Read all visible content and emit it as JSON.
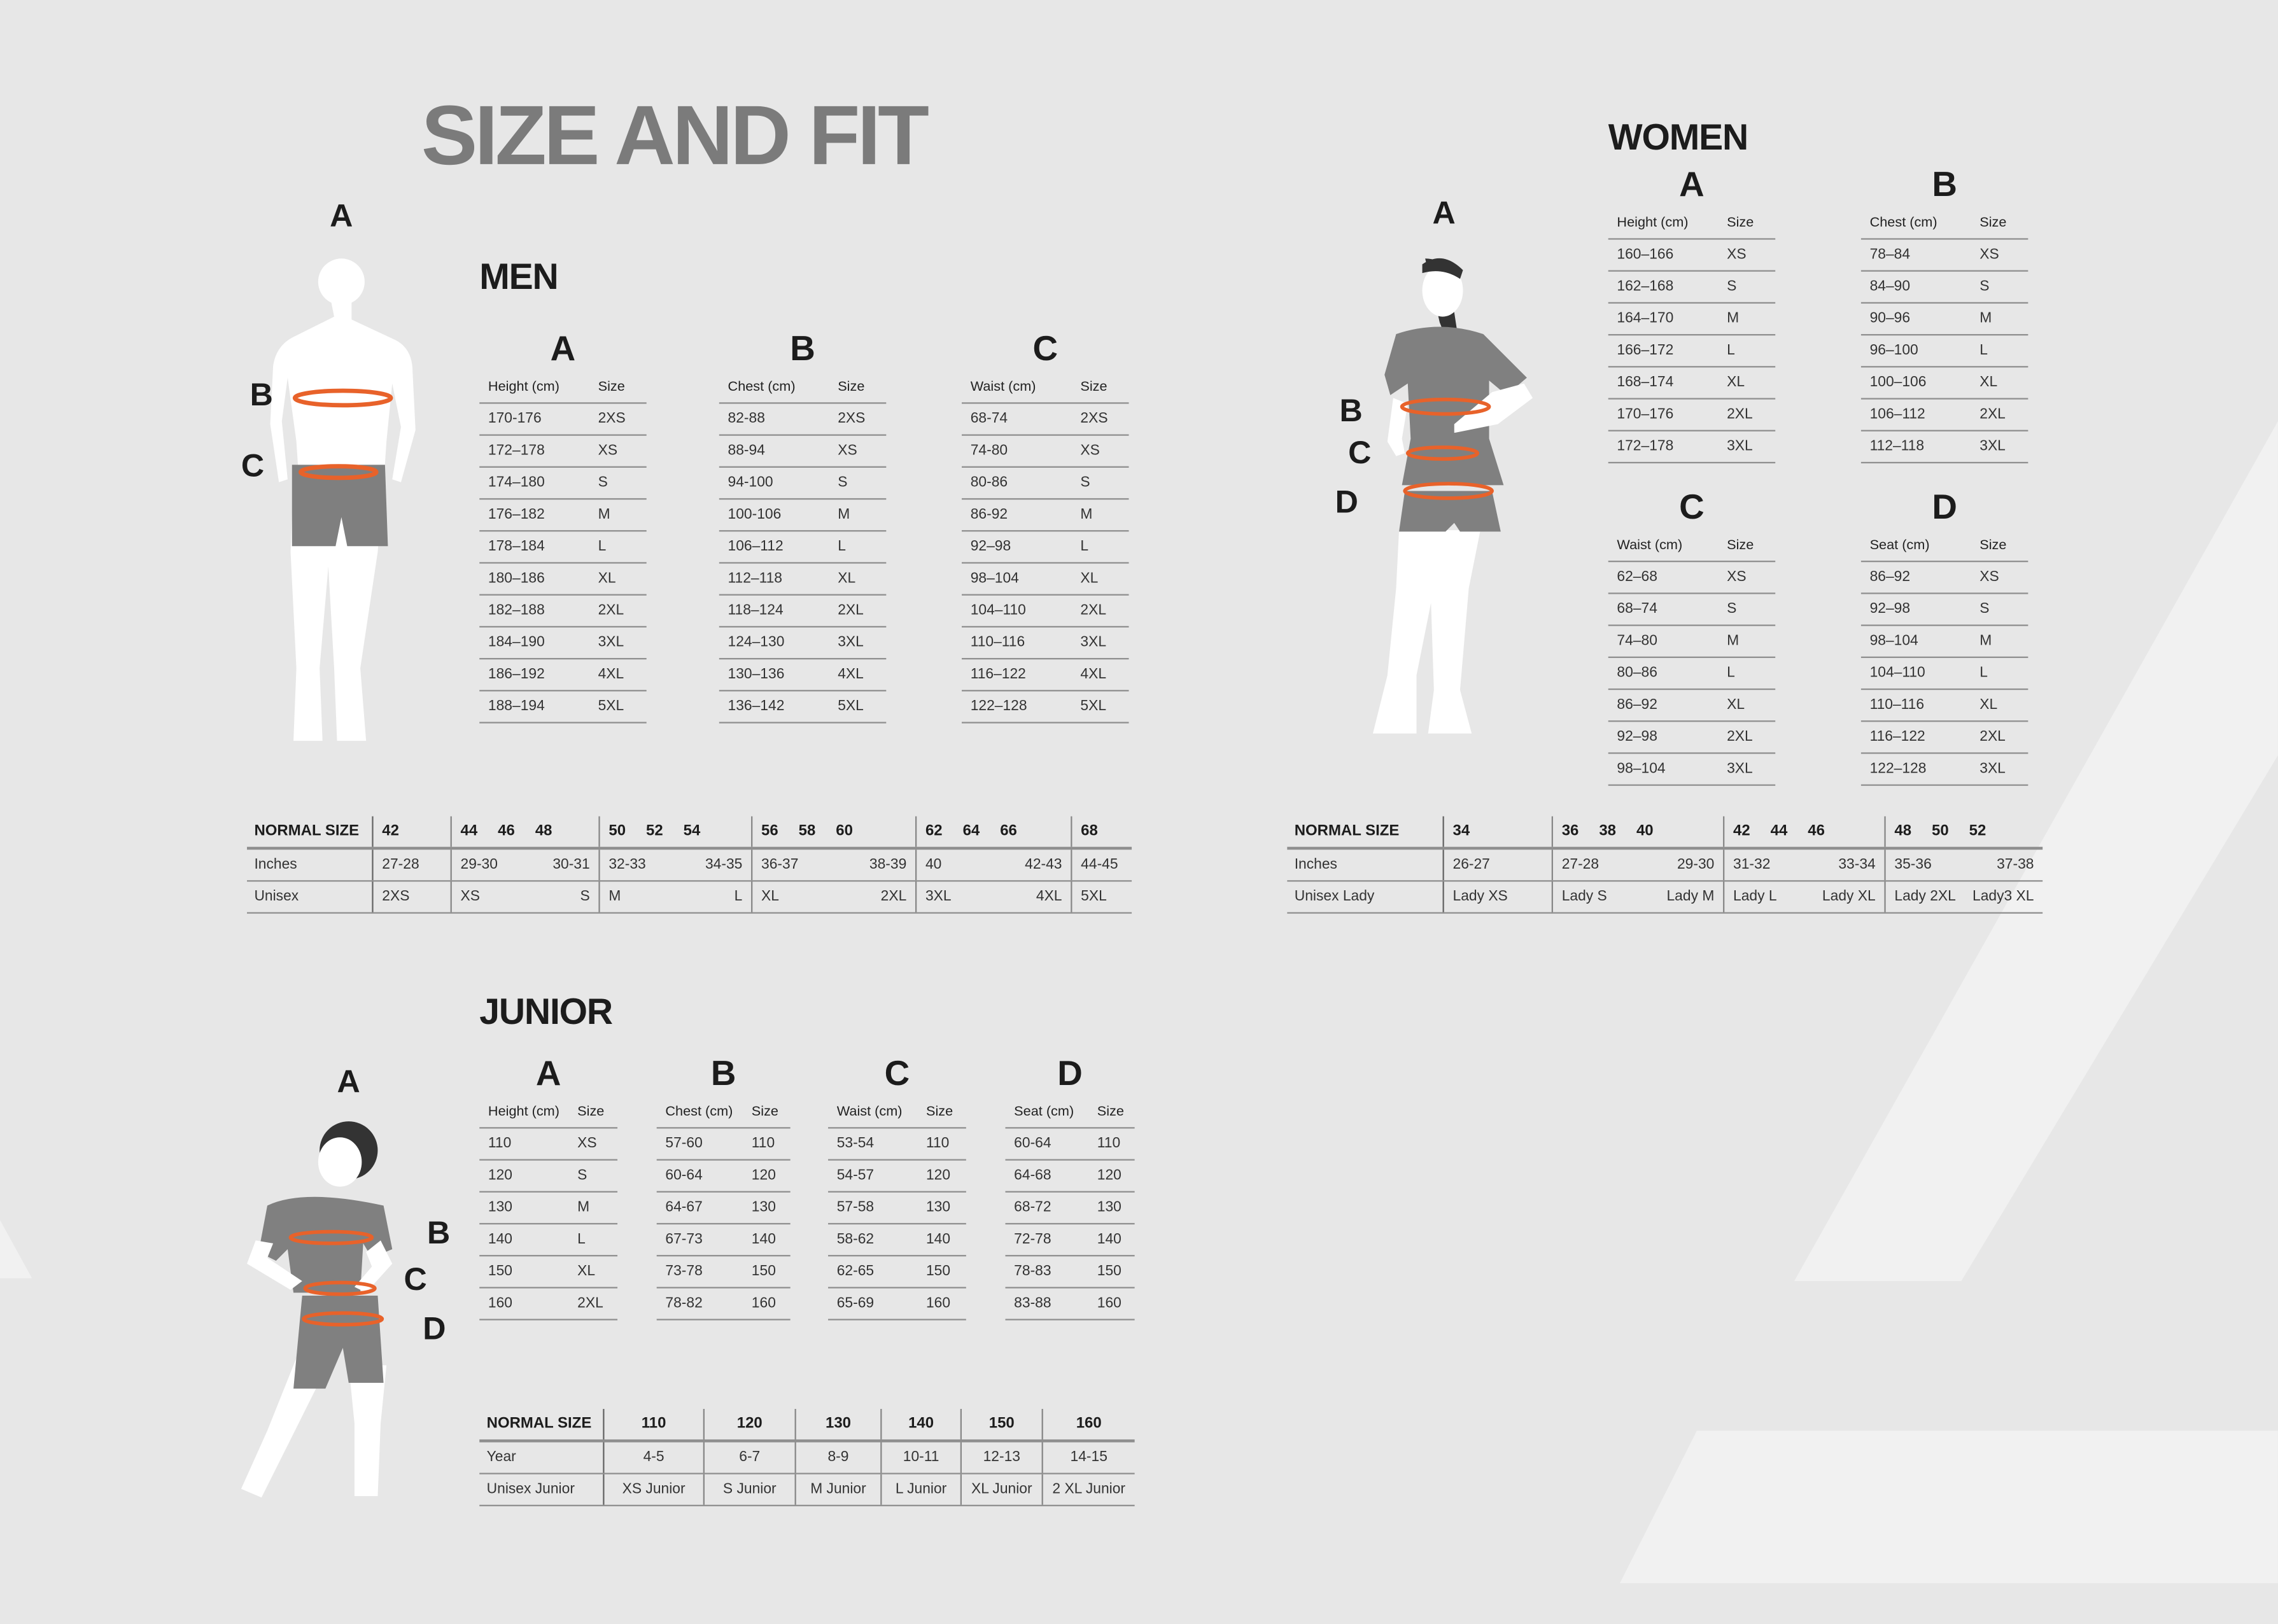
{
  "title": "SIZE AND FIT",
  "colors": {
    "background": "#e7e7e7",
    "accent_ring": "#e8622a",
    "title": "#7b7b7b",
    "garment": "#808080"
  },
  "men": {
    "label": "MEN",
    "figure_letters": [
      "A",
      "B",
      "C"
    ],
    "tables": [
      {
        "letter": "A",
        "headers": [
          "Height (cm)",
          "Size"
        ],
        "rows": [
          [
            "170-176",
            "2XS"
          ],
          [
            "172–178",
            "XS"
          ],
          [
            "174–180",
            "S"
          ],
          [
            "176–182",
            "M"
          ],
          [
            "178–184",
            "L"
          ],
          [
            "180–186",
            "XL"
          ],
          [
            "182–188",
            "2XL"
          ],
          [
            "184–190",
            "3XL"
          ],
          [
            "186–192",
            "4XL"
          ],
          [
            "188–194",
            "5XL"
          ]
        ]
      },
      {
        "letter": "B",
        "headers": [
          "Chest (cm)",
          "Size"
        ],
        "rows": [
          [
            "82-88",
            "2XS"
          ],
          [
            "88-94",
            "XS"
          ],
          [
            "94-100",
            "S"
          ],
          [
            "100-106",
            "M"
          ],
          [
            "106–112",
            "L"
          ],
          [
            "112–118",
            "XL"
          ],
          [
            "118–124",
            "2XL"
          ],
          [
            "124–130",
            "3XL"
          ],
          [
            "130–136",
            "4XL"
          ],
          [
            "136–142",
            "5XL"
          ]
        ]
      },
      {
        "letter": "C",
        "headers": [
          "Waist (cm)",
          "Size"
        ],
        "rows": [
          [
            "68-74",
            "2XS"
          ],
          [
            "74-80",
            "XS"
          ],
          [
            "80-86",
            "S"
          ],
          [
            "86-92",
            "M"
          ],
          [
            "92–98",
            "L"
          ],
          [
            "98–104",
            "XL"
          ],
          [
            "104–110",
            "2XL"
          ],
          [
            "110–116",
            "3XL"
          ],
          [
            "116–122",
            "4XL"
          ],
          [
            "122–128",
            "5XL"
          ]
        ]
      }
    ],
    "normal": {
      "row_labels": [
        "NORMAL SIZE",
        "Inches",
        "Unisex"
      ],
      "groups": [
        {
          "sizes": [
            "42"
          ],
          "inches": [
            "27-28"
          ],
          "unisex": [
            "2XS"
          ]
        },
        {
          "sizes": [
            "44",
            "46",
            "48"
          ],
          "inches": [
            "29-30",
            "30-31"
          ],
          "unisex": [
            "XS",
            "S"
          ]
        },
        {
          "sizes": [
            "50",
            "52",
            "54"
          ],
          "inches": [
            "32-33",
            "34-35"
          ],
          "unisex": [
            "M",
            "L"
          ]
        },
        {
          "sizes": [
            "56",
            "58",
            "60"
          ],
          "inches": [
            "36-37",
            "38-39"
          ],
          "unisex": [
            "XL",
            "2XL"
          ]
        },
        {
          "sizes": [
            "62",
            "64",
            "66"
          ],
          "inches": [
            "40",
            "42-43"
          ],
          "unisex": [
            "3XL",
            "4XL"
          ]
        },
        {
          "sizes": [
            "68"
          ],
          "inches": [
            "44-45"
          ],
          "unisex": [
            "5XL"
          ]
        }
      ]
    }
  },
  "women": {
    "label": "WOMEN",
    "figure_letters": [
      "A",
      "B",
      "C",
      "D"
    ],
    "tables": [
      {
        "letter": "A",
        "headers": [
          "Height (cm)",
          "Size"
        ],
        "rows": [
          [
            "160–166",
            "XS"
          ],
          [
            "162–168",
            "S"
          ],
          [
            "164–170",
            "M"
          ],
          [
            "166–172",
            "L"
          ],
          [
            "168–174",
            "XL"
          ],
          [
            "170–176",
            "2XL"
          ],
          [
            "172–178",
            "3XL"
          ]
        ]
      },
      {
        "letter": "B",
        "headers": [
          "Chest (cm)",
          "Size"
        ],
        "rows": [
          [
            "78–84",
            "XS"
          ],
          [
            "84–90",
            "S"
          ],
          [
            "90–96",
            "M"
          ],
          [
            "96–100",
            "L"
          ],
          [
            "100–106",
            "XL"
          ],
          [
            "106–112",
            "2XL"
          ],
          [
            "112–118",
            "3XL"
          ]
        ]
      },
      {
        "letter": "C",
        "headers": [
          "Waist (cm)",
          "Size"
        ],
        "rows": [
          [
            "62–68",
            "XS"
          ],
          [
            "68–74",
            "S"
          ],
          [
            "74–80",
            "M"
          ],
          [
            "80–86",
            "L"
          ],
          [
            "86–92",
            "XL"
          ],
          [
            "92–98",
            "2XL"
          ],
          [
            "98–104",
            "3XL"
          ]
        ]
      },
      {
        "letter": "D",
        "headers": [
          "Seat (cm)",
          "Size"
        ],
        "rows": [
          [
            "86–92",
            "XS"
          ],
          [
            "92–98",
            "S"
          ],
          [
            "98–104",
            "M"
          ],
          [
            "104–110",
            "L"
          ],
          [
            "110–116",
            "XL"
          ],
          [
            "116–122",
            "2XL"
          ],
          [
            "122–128",
            "3XL"
          ]
        ]
      }
    ],
    "normal": {
      "row_labels": [
        "NORMAL SIZE",
        "Inches",
        "Unisex Lady"
      ],
      "groups": [
        {
          "sizes": [
            "34"
          ],
          "inches": [
            "26-27"
          ],
          "unisex": [
            "Lady XS"
          ]
        },
        {
          "sizes": [
            "36",
            "38",
            "40"
          ],
          "inches": [
            "27-28",
            "29-30"
          ],
          "unisex": [
            "Lady S",
            "Lady M"
          ]
        },
        {
          "sizes": [
            "42",
            "44",
            "46"
          ],
          "inches": [
            "31-32",
            "33-34"
          ],
          "unisex": [
            "Lady L",
            "Lady XL"
          ]
        },
        {
          "sizes": [
            "48",
            "50",
            "52"
          ],
          "inches": [
            "35-36",
            "37-38"
          ],
          "unisex": [
            "Lady 2XL",
            "Lady3 XL"
          ]
        }
      ]
    }
  },
  "junior": {
    "label": "JUNIOR",
    "figure_letters": [
      "A",
      "B",
      "C",
      "D"
    ],
    "tables": [
      {
        "letter": "A",
        "headers": [
          "Height (cm)",
          "Size"
        ],
        "rows": [
          [
            "110",
            "XS"
          ],
          [
            "120",
            "S"
          ],
          [
            "130",
            "M"
          ],
          [
            "140",
            "L"
          ],
          [
            "150",
            "XL"
          ],
          [
            "160",
            "2XL"
          ]
        ]
      },
      {
        "letter": "B",
        "headers": [
          "Chest (cm)",
          "Size"
        ],
        "rows": [
          [
            "57-60",
            "110"
          ],
          [
            "60-64",
            "120"
          ],
          [
            "64-67",
            "130"
          ],
          [
            "67-73",
            "140"
          ],
          [
            "73-78",
            "150"
          ],
          [
            "78-82",
            "160"
          ]
        ]
      },
      {
        "letter": "C",
        "headers": [
          "Waist (cm)",
          "Size"
        ],
        "rows": [
          [
            "53-54",
            "110"
          ],
          [
            "54-57",
            "120"
          ],
          [
            "57-58",
            "130"
          ],
          [
            "58-62",
            "140"
          ],
          [
            "62-65",
            "150"
          ],
          [
            "65-69",
            "160"
          ]
        ]
      },
      {
        "letter": "D",
        "headers": [
          "Seat (cm)",
          "Size"
        ],
        "rows": [
          [
            "60-64",
            "110"
          ],
          [
            "64-68",
            "120"
          ],
          [
            "68-72",
            "130"
          ],
          [
            "72-78",
            "140"
          ],
          [
            "78-83",
            "150"
          ],
          [
            "83-88",
            "160"
          ]
        ]
      }
    ],
    "normal": {
      "row_labels": [
        "NORMAL SIZE",
        "Year",
        "Unisex Junior"
      ],
      "groups": [
        {
          "sizes": [
            "110"
          ],
          "inches": [
            "4-5"
          ],
          "unisex": [
            "XS Junior"
          ]
        },
        {
          "sizes": [
            "120"
          ],
          "inches": [
            "6-7"
          ],
          "unisex": [
            "S Junior"
          ]
        },
        {
          "sizes": [
            "130"
          ],
          "inches": [
            "8-9"
          ],
          "unisex": [
            "M Junior"
          ]
        },
        {
          "sizes": [
            "140"
          ],
          "inches": [
            "10-11"
          ],
          "unisex": [
            "L Junior"
          ]
        },
        {
          "sizes": [
            "150"
          ],
          "inches": [
            "12-13"
          ],
          "unisex": [
            "XL Junior"
          ]
        },
        {
          "sizes": [
            "160"
          ],
          "inches": [
            "14-15"
          ],
          "unisex": [
            "2 XL Junior"
          ]
        }
      ]
    }
  }
}
